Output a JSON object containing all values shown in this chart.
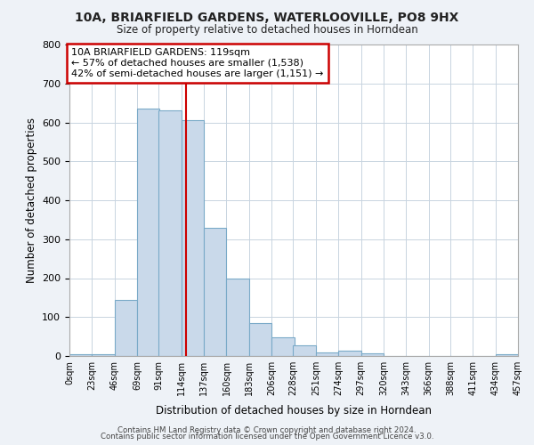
{
  "title1": "10A, BRIARFIELD GARDENS, WATERLOOVILLE, PO8 9HX",
  "title2": "Size of property relative to detached houses in Horndean",
  "xlabel": "Distribution of detached houses by size in Horndean",
  "ylabel": "Number of detached properties",
  "bin_edges": [
    0,
    23,
    46,
    69,
    91,
    114,
    137,
    160,
    183,
    206,
    228,
    251,
    274,
    297,
    320,
    343,
    366,
    388,
    411,
    434,
    457
  ],
  "bar_heights": [
    5,
    5,
    145,
    635,
    630,
    605,
    330,
    200,
    85,
    47,
    28,
    10,
    13,
    8,
    0,
    0,
    0,
    0,
    0,
    5
  ],
  "bar_color": "#c9d9ea",
  "bar_edge_color": "#7aaac8",
  "property_size": 119,
  "vline_color": "#cc0000",
  "annotation_text": "10A BRIARFIELD GARDENS: 119sqm\n← 57% of detached houses are smaller (1,538)\n42% of semi-detached houses are larger (1,151) →",
  "annotation_box_color": "#ffffff",
  "annotation_box_edge": "#cc0000",
  "ylim": [
    0,
    800
  ],
  "yticks": [
    0,
    100,
    200,
    300,
    400,
    500,
    600,
    700,
    800
  ],
  "tick_labels": [
    "0sqm",
    "23sqm",
    "46sqm",
    "69sqm",
    "91sqm",
    "114sqm",
    "137sqm",
    "160sqm",
    "183sqm",
    "206sqm",
    "228sqm",
    "251sqm",
    "274sqm",
    "297sqm",
    "320sqm",
    "343sqm",
    "366sqm",
    "388sqm",
    "411sqm",
    "434sqm",
    "457sqm"
  ],
  "footer1": "Contains HM Land Registry data © Crown copyright and database right 2024.",
  "footer2": "Contains public sector information licensed under the Open Government Licence v3.0.",
  "bg_color": "#eef2f7",
  "plot_bg_color": "#ffffff",
  "grid_color": "#c8d4e0"
}
